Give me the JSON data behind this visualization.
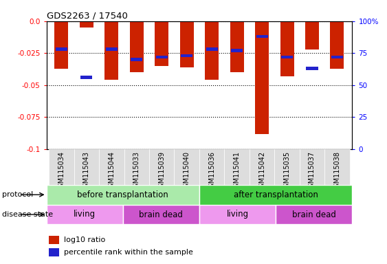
{
  "title": "GDS2263 / 17540",
  "samples": [
    "GSM115034",
    "GSM115043",
    "GSM115044",
    "GSM115033",
    "GSM115039",
    "GSM115040",
    "GSM115036",
    "GSM115041",
    "GSM115042",
    "GSM115035",
    "GSM115037",
    "GSM115038"
  ],
  "log10_ratio": [
    -0.037,
    -0.005,
    -0.046,
    -0.04,
    -0.035,
    -0.036,
    -0.046,
    -0.04,
    -0.088,
    -0.043,
    -0.022,
    -0.037
  ],
  "percentile_rank_pct": [
    22,
    44,
    22,
    30,
    28,
    27,
    22,
    23,
    12,
    28,
    37,
    28
  ],
  "ylim_left": [
    -0.1,
    0.0
  ],
  "ylim_right": [
    0,
    100
  ],
  "yticks_left": [
    0.0,
    -0.025,
    -0.05,
    -0.075,
    -0.1
  ],
  "yticks_right": [
    0,
    25,
    50,
    75,
    100
  ],
  "bar_color": "#cc2200",
  "percentile_color": "#2222cc",
  "protocol_before": {
    "label": "before transplantation",
    "color": "#aaeaaa",
    "start": 0,
    "end": 6
  },
  "protocol_after": {
    "label": "after transplantation",
    "color": "#44cc44",
    "start": 6,
    "end": 12
  },
  "living1": {
    "label": "living",
    "color": "#ee99ee",
    "start": 0,
    "end": 3
  },
  "braindead1": {
    "label": "brain dead",
    "color": "#cc55cc",
    "start": 3,
    "end": 6
  },
  "living2": {
    "label": "living",
    "color": "#ee99ee",
    "start": 6,
    "end": 9
  },
  "braindead2": {
    "label": "brain dead",
    "color": "#cc55cc",
    "start": 9,
    "end": 12
  },
  "legend_red": "log10 ratio",
  "legend_blue": "percentile rank within the sample",
  "protocol_label": "protocol",
  "disease_label": "disease state",
  "xtick_bg": "#dddddd"
}
